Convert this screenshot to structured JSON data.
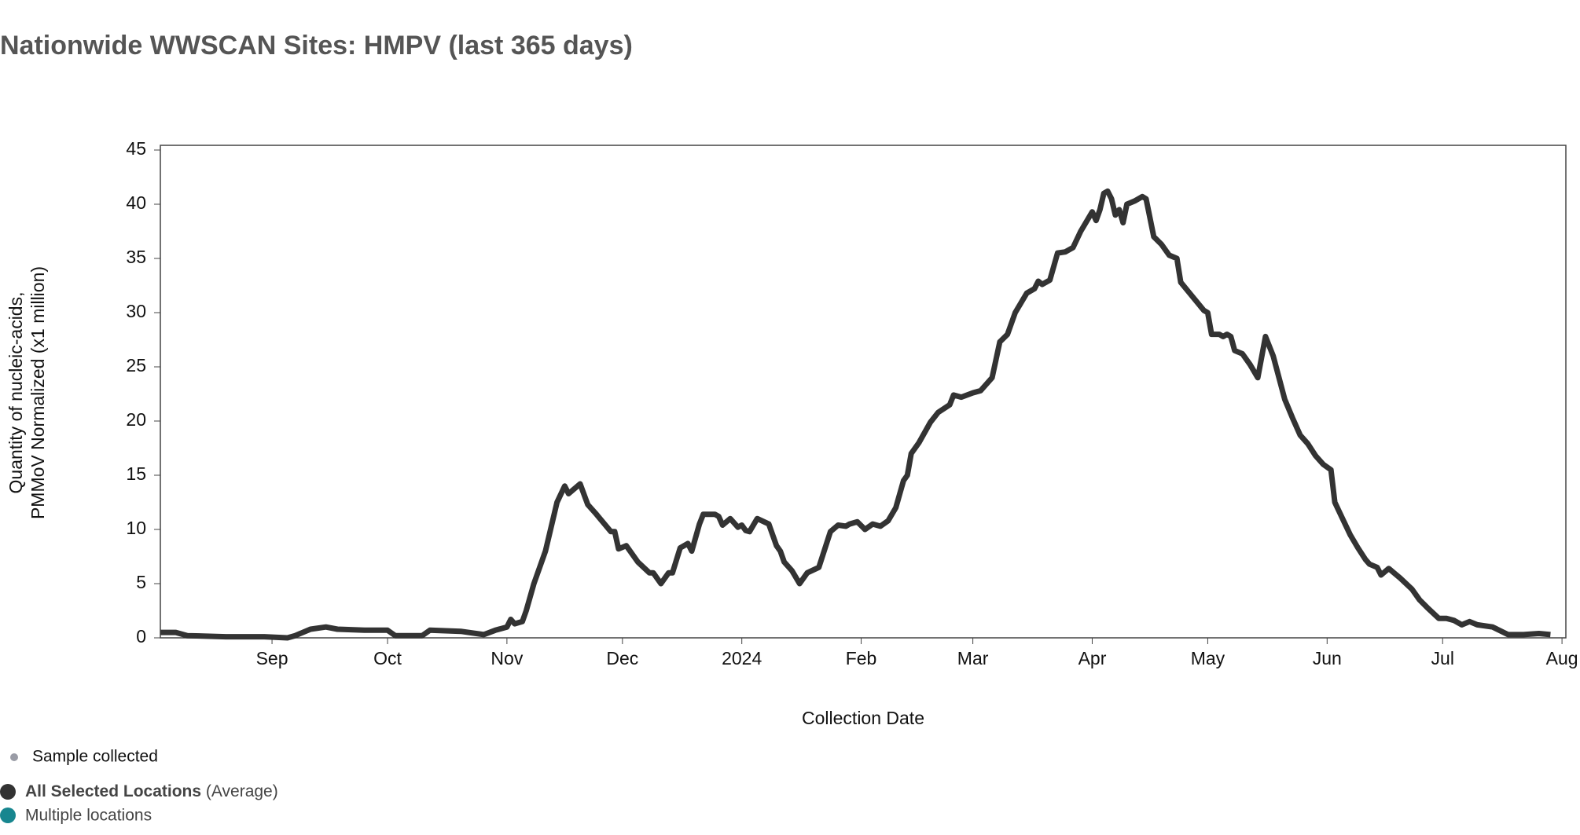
{
  "chart_data": {
    "type": "line",
    "title": "Nationwide WWSCAN Sites: HMPV (last 365 days)",
    "xlabel": "Collection Date",
    "ylabel": [
      "Quantity of nucleic-acids,",
      "PMMoV Normalized (x1 million)"
    ],
    "x": [
      "2023-08-03",
      "2023-08-07",
      "2023-08-10",
      "2023-08-20",
      "2023-08-30",
      "2023-09-05",
      "2023-09-07",
      "2023-09-11",
      "2023-09-15",
      "2023-09-18",
      "2023-09-25",
      "2023-10-01",
      "2023-10-03",
      "2023-10-10",
      "2023-10-12",
      "2023-10-20",
      "2023-10-26",
      "2023-10-29",
      "2023-11-01",
      "2023-11-02",
      "2023-11-03",
      "2023-11-05",
      "2023-11-06",
      "2023-11-08",
      "2023-11-11",
      "2023-11-14",
      "2023-11-16",
      "2023-11-17",
      "2023-11-20",
      "2023-11-22",
      "2023-11-24",
      "2023-11-28",
      "2023-11-29",
      "2023-11-30",
      "2023-12-02",
      "2023-12-05",
      "2023-12-08",
      "2023-12-09",
      "2023-12-11",
      "2023-12-13",
      "2023-12-14",
      "2023-12-16",
      "2023-12-18",
      "2023-12-19",
      "2023-12-21",
      "2023-12-22",
      "2023-12-25",
      "2023-12-26",
      "2023-12-27",
      "2023-12-29",
      "2023-12-31",
      "2024-01-01",
      "2024-01-02",
      "2024-01-03",
      "2024-01-05",
      "2024-01-08",
      "2024-01-10",
      "2024-01-11",
      "2024-01-12",
      "2024-01-14",
      "2024-01-16",
      "2024-01-18",
      "2024-01-21",
      "2024-01-24",
      "2024-01-26",
      "2024-01-28",
      "2024-01-29",
      "2024-01-31",
      "2024-02-02",
      "2024-02-04",
      "2024-02-06",
      "2024-02-08",
      "2024-02-10",
      "2024-02-12",
      "2024-02-13",
      "2024-02-14",
      "2024-02-16",
      "2024-02-19",
      "2024-02-21",
      "2024-02-24",
      "2024-02-25",
      "2024-02-27",
      "2024-03-01",
      "2024-03-03",
      "2024-03-06",
      "2024-03-08",
      "2024-03-10",
      "2024-03-12",
      "2024-03-15",
      "2024-03-17",
      "2024-03-18",
      "2024-03-19",
      "2024-03-21",
      "2024-03-23",
      "2024-03-25",
      "2024-03-27",
      "2024-03-29",
      "2024-04-01",
      "2024-04-02",
      "2024-04-03",
      "2024-04-04",
      "2024-04-05",
      "2024-04-06",
      "2024-04-07",
      "2024-04-08",
      "2024-04-09",
      "2024-04-10",
      "2024-04-12",
      "2024-04-14",
      "2024-04-15",
      "2024-04-17",
      "2024-04-19",
      "2024-04-21",
      "2024-04-23",
      "2024-04-24",
      "2024-04-27",
      "2024-04-30",
      "2024-05-01",
      "2024-05-02",
      "2024-05-04",
      "2024-05-05",
      "2024-05-06",
      "2024-05-07",
      "2024-05-08",
      "2024-05-10",
      "2024-05-12",
      "2024-05-14",
      "2024-05-16",
      "2024-05-18",
      "2024-05-21",
      "2024-05-23",
      "2024-05-25",
      "2024-05-27",
      "2024-05-29",
      "2024-05-31",
      "2024-06-02",
      "2024-06-03",
      "2024-06-05",
      "2024-06-07",
      "2024-06-09",
      "2024-06-11",
      "2024-06-12",
      "2024-06-14",
      "2024-06-15",
      "2024-06-17",
      "2024-06-20",
      "2024-06-23",
      "2024-06-25",
      "2024-06-27",
      "2024-06-30",
      "2024-07-02",
      "2024-07-04",
      "2024-07-06",
      "2024-07-08",
      "2024-07-10",
      "2024-07-14",
      "2024-07-18",
      "2024-07-22",
      "2024-07-26",
      "2024-07-29"
    ],
    "series": [
      {
        "name": "All Selected Locations",
        "name_note": "(Average)",
        "color": "#333333",
        "values": [
          0.5,
          0.5,
          0.2,
          0.1,
          0.1,
          0.0,
          0.2,
          0.8,
          1.0,
          0.8,
          0.7,
          0.7,
          0.2,
          0.2,
          0.7,
          0.6,
          0.3,
          0.7,
          1.0,
          1.7,
          1.3,
          1.5,
          2.5,
          5,
          8,
          12.5,
          14,
          13.3,
          14.2,
          12.3,
          11.5,
          9.8,
          9.8,
          8.2,
          8.5,
          7.0,
          6.0,
          6.0,
          5.0,
          6.0,
          6.0,
          8.3,
          8.7,
          8.0,
          10.5,
          11.4,
          11.4,
          11.2,
          10.4,
          11.0,
          10.2,
          10.4,
          9.9,
          9.8,
          11.0,
          10.5,
          8.5,
          8.0,
          7.0,
          6.2,
          5.0,
          6.0,
          6.5,
          9.8,
          10.4,
          10.3,
          10.5,
          10.7,
          10.0,
          10.5,
          10.3,
          10.8,
          12.0,
          14.5,
          15.0,
          17.0,
          18.0,
          19.9,
          20.8,
          21.5,
          22.4,
          22.2,
          22.6,
          22.8,
          24,
          27.3,
          28.0,
          30,
          31.8,
          32.2,
          32.9,
          32.6,
          33,
          35.5,
          35.6,
          36.0,
          37.5,
          39.3,
          38.5,
          39.5,
          41.0,
          41.2,
          40.5,
          39.0,
          39.5,
          38.3,
          40.0,
          40.3,
          40.7,
          40.5,
          37,
          36.3,
          35.3,
          35.0,
          32.8,
          31.5,
          30.2,
          30.0,
          28.0,
          28.0,
          27.8,
          28.0,
          27.8,
          26.5,
          26.2,
          25.2,
          24,
          27.8,
          26.0,
          22,
          20.3,
          18.7,
          17.9,
          16.8,
          16.0,
          15.5,
          12.5,
          11.0,
          9.5,
          8.3,
          7.2,
          6.8,
          6.5,
          5.8,
          6.4,
          5.5,
          4.5,
          3.5,
          2.8,
          1.8,
          1.8,
          1.6,
          1.2,
          1.5,
          1.2,
          1.0,
          0.3,
          0.3,
          0.4,
          0.3
        ]
      }
    ],
    "legend_items": [
      {
        "name": "Sample collected",
        "color": "#9a9ca6"
      },
      {
        "name": "Multiple locations",
        "color": "#17868f"
      }
    ],
    "xlim": [
      "2023-08-03",
      "2024-08-02"
    ],
    "xticks": [
      {
        "value": "2023-09-01",
        "label": "Sep"
      },
      {
        "value": "2023-10-01",
        "label": "Oct"
      },
      {
        "value": "2023-11-01",
        "label": "Nov"
      },
      {
        "value": "2023-12-01",
        "label": "Dec"
      },
      {
        "value": "2024-01-01",
        "label": "2024"
      },
      {
        "value": "2024-02-01",
        "label": "Feb"
      },
      {
        "value": "2024-03-01",
        "label": "Mar"
      },
      {
        "value": "2024-04-01",
        "label": "Apr"
      },
      {
        "value": "2024-05-01",
        "label": "May"
      },
      {
        "value": "2024-06-01",
        "label": "Jun"
      },
      {
        "value": "2024-07-01",
        "label": "Jul"
      },
      {
        "value": "2024-08-01",
        "label": "Aug"
      }
    ],
    "ylim": [
      0,
      45
    ],
    "yticks": [
      0,
      5,
      10,
      15,
      20,
      25,
      30,
      35,
      40,
      45
    ],
    "grid": false
  }
}
